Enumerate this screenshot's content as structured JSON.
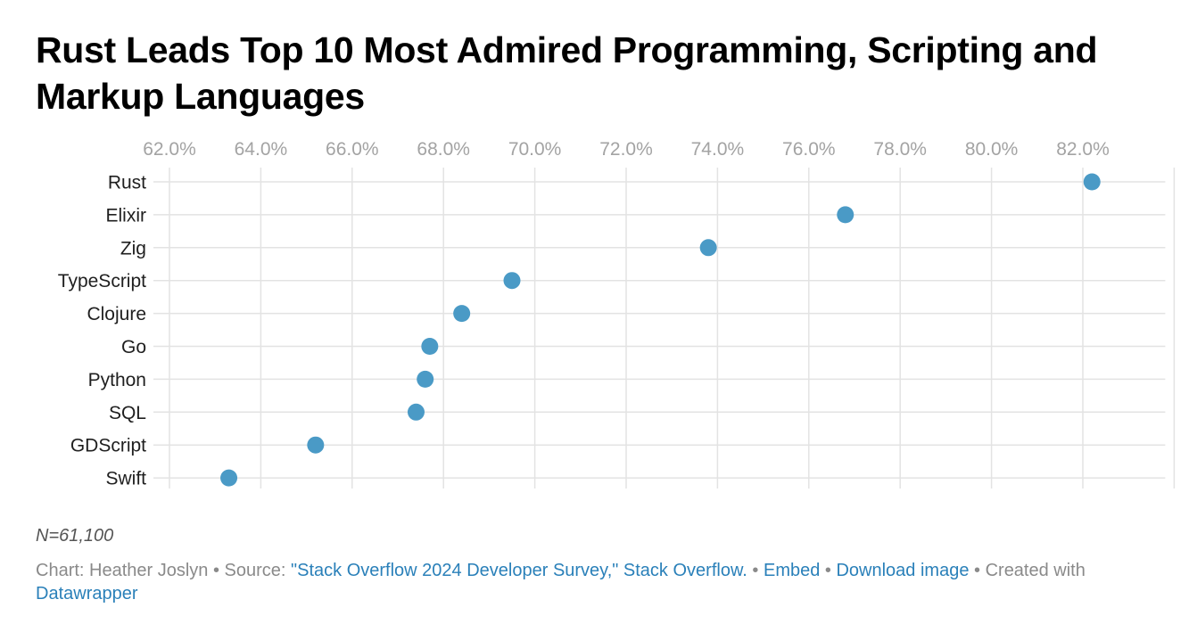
{
  "colors": {
    "dot": "#4a9ac6",
    "grid": "#e3e3e3",
    "link": "#2a80b9"
  },
  "chart_data": {
    "type": "scatter",
    "title": "Rust Leads Top 10 Most Admired Programming, Scripting and Markup Languages",
    "categories": [
      "Rust",
      "Elixir",
      "Zig",
      "TypeScript",
      "Clojure",
      "Go",
      "Python",
      "SQL",
      "GDScript",
      "Swift"
    ],
    "values": [
      82.2,
      76.8,
      73.8,
      69.5,
      68.4,
      67.7,
      67.6,
      67.4,
      65.2,
      63.3
    ],
    "xlim": [
      62,
      84
    ],
    "xticks": [
      62,
      64,
      66,
      68,
      70,
      72,
      74,
      76,
      78,
      80,
      82
    ],
    "xtick_labels": [
      "62.0%",
      "64.0%",
      "66.0%",
      "68.0%",
      "70.0%",
      "72.0%",
      "74.0%",
      "76.0%",
      "78.0%",
      "80.0%",
      "82.0%"
    ],
    "xlabel": "",
    "ylabel": "",
    "axis_position": "top",
    "grid": true,
    "legend": "none"
  },
  "notes": "N=61,100",
  "footer": {
    "chart_by": "Chart: Heather Joslyn",
    "sep1": " • Source: ",
    "source_link": "\"Stack Overflow 2024 Developer Survey,\" Stack Overflow.",
    "sep2": " • ",
    "embed": "Embed",
    "sep3": "  • ",
    "download": "Download image",
    "sep4": " • Created with ",
    "datawrapper": "Datawrapper"
  }
}
